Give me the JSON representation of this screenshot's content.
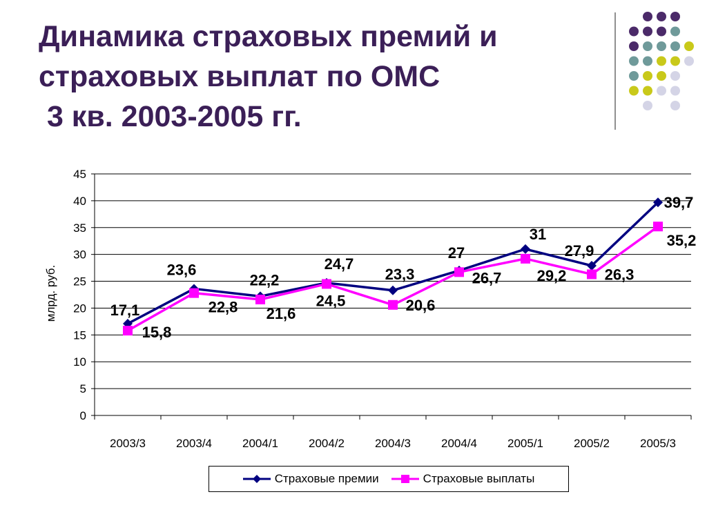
{
  "slide": {
    "title_lines": [
      "Динамика страховых премий и",
      "страховых выплат по ОМС",
      " 3 кв. 2003-2005 гг."
    ],
    "colors": {
      "title": "#3b1f57",
      "dot_purple": "#4b2a69",
      "dot_teal": "#6f9a9a",
      "dot_yellow": "#c9c91a",
      "dot_lavender": "#d4d4e6"
    }
  },
  "chart_data": {
    "type": "line",
    "categories": [
      "2003/3",
      "2003/4",
      "2004/1",
      "2004/2",
      "2004/3",
      "2004/4",
      "2005/1",
      "2005/2",
      "2005/3"
    ],
    "ylabel": "млрд. руб.",
    "ylim": [
      0,
      45
    ],
    "yticks": [
      0,
      5,
      10,
      15,
      20,
      25,
      30,
      35,
      40,
      45
    ],
    "grid": true,
    "legend_position": "bottom",
    "series": [
      {
        "name": "Страховые премии",
        "values": [
          17.1,
          23.6,
          22.2,
          24.7,
          23.3,
          27,
          31,
          27.9,
          39.7
        ],
        "labels": [
          "17,1",
          "23,6",
          "22,2",
          "24,7",
          "23,3",
          "27",
          "31",
          "27,9",
          "39,7"
        ],
        "color": "#000080",
        "marker": "diamond"
      },
      {
        "name": "Страховые выплаты",
        "values": [
          15.8,
          22.8,
          21.6,
          24.5,
          20.6,
          26.7,
          29.2,
          26.3,
          35.2
        ],
        "labels": [
          "15,8",
          "22,8",
          "21,6",
          "24,5",
          "20,6",
          "26,7",
          "29,2",
          "26,3",
          "35,2"
        ],
        "color": "#ff00ff",
        "marker": "square"
      }
    ]
  }
}
